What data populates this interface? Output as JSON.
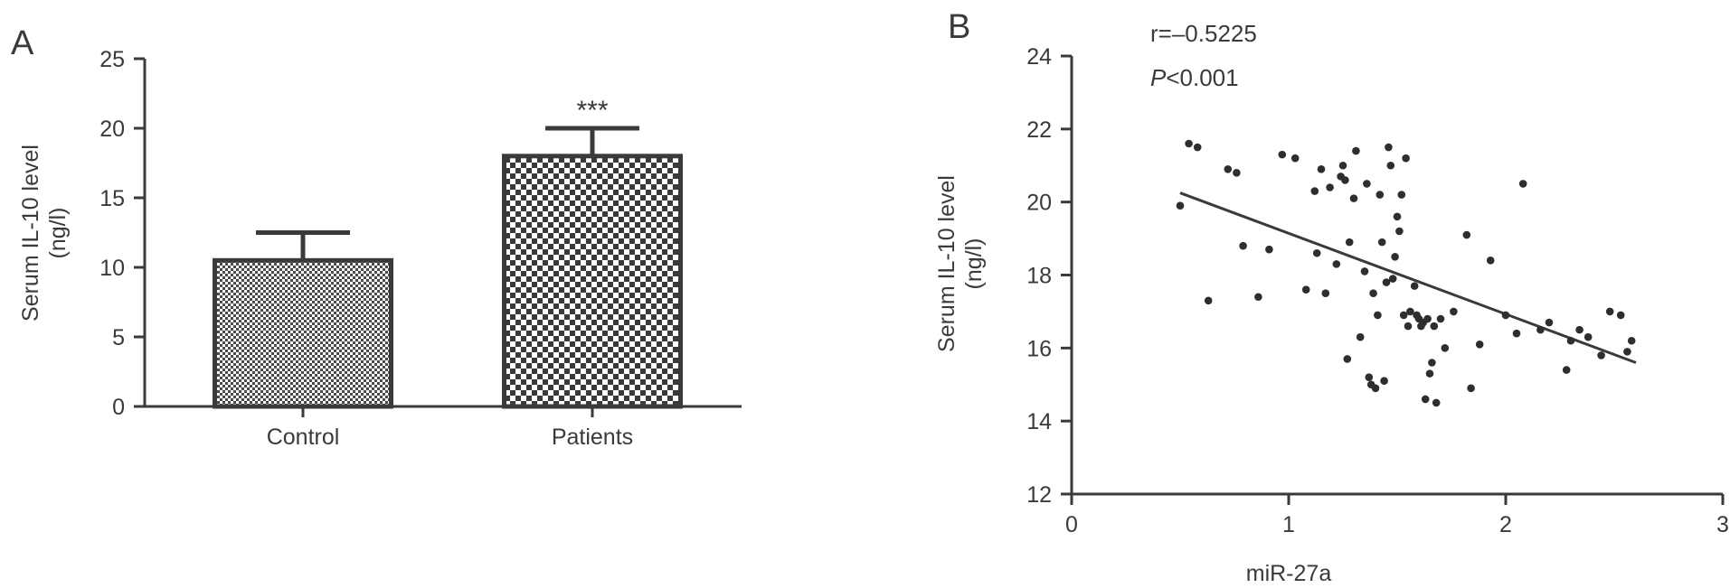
{
  "chart_data": [
    {
      "panel_label": "A",
      "type": "bar",
      "categories": [
        "Control",
        "Patients"
      ],
      "values": [
        10.5,
        18.0
      ],
      "error": [
        2.0,
        2.0
      ],
      "annotations": [
        "",
        "***"
      ],
      "ylabel": [
        "Serum IL-10 level",
        "(ng/l)"
      ],
      "ylim": [
        0,
        25
      ],
      "yticks": [
        0,
        5,
        10,
        15,
        20,
        25
      ],
      "fills": [
        "fine-checker",
        "coarse-checker"
      ],
      "grid": false
    },
    {
      "panel_label": "B",
      "type": "scatter",
      "xlabel": "miR-27a",
      "ylabel": [
        "Serum IL-10 level",
        "(ng/l)"
      ],
      "xlim": [
        0,
        3
      ],
      "ylim": [
        12,
        24
      ],
      "xticks": [
        0,
        1,
        2,
        3
      ],
      "yticks": [
        12,
        14,
        16,
        18,
        20,
        22,
        24
      ],
      "stats": {
        "r": "r=–0.5225",
        "p_italic": "P",
        "p_rest": "<0.001"
      },
      "fit_line": {
        "x": [
          0.5,
          2.6
        ],
        "y": [
          20.25,
          15.6
        ]
      },
      "points": [
        [
          0.5,
          19.9
        ],
        [
          0.54,
          21.6
        ],
        [
          0.58,
          21.5
        ],
        [
          0.63,
          17.3
        ],
        [
          0.72,
          20.9
        ],
        [
          0.76,
          20.8
        ],
        [
          0.79,
          18.8
        ],
        [
          0.86,
          17.4
        ],
        [
          0.91,
          18.7
        ],
        [
          0.97,
          21.3
        ],
        [
          1.03,
          21.2
        ],
        [
          1.08,
          17.6
        ],
        [
          1.12,
          20.3
        ],
        [
          1.13,
          18.6
        ],
        [
          1.15,
          20.9
        ],
        [
          1.17,
          17.5
        ],
        [
          1.19,
          20.4
        ],
        [
          1.22,
          18.3
        ],
        [
          1.24,
          20.7
        ],
        [
          1.25,
          21.0
        ],
        [
          1.26,
          20.6
        ],
        [
          1.27,
          15.7
        ],
        [
          1.28,
          18.9
        ],
        [
          1.3,
          20.1
        ],
        [
          1.31,
          21.4
        ],
        [
          1.33,
          16.3
        ],
        [
          1.35,
          18.1
        ],
        [
          1.36,
          20.5
        ],
        [
          1.37,
          15.2
        ],
        [
          1.38,
          15.0
        ],
        [
          1.39,
          17.5
        ],
        [
          1.4,
          14.9
        ],
        [
          1.41,
          16.9
        ],
        [
          1.42,
          20.2
        ],
        [
          1.43,
          18.9
        ],
        [
          1.44,
          15.1
        ],
        [
          1.45,
          17.8
        ],
        [
          1.46,
          21.5
        ],
        [
          1.47,
          21.0
        ],
        [
          1.48,
          17.9
        ],
        [
          1.49,
          18.5
        ],
        [
          1.5,
          19.6
        ],
        [
          1.51,
          19.2
        ],
        [
          1.52,
          20.2
        ],
        [
          1.53,
          16.9
        ],
        [
          1.54,
          21.2
        ],
        [
          1.55,
          16.6
        ],
        [
          1.56,
          17.0
        ],
        [
          1.58,
          17.7
        ],
        [
          1.59,
          16.9
        ],
        [
          1.6,
          16.8
        ],
        [
          1.61,
          16.6
        ],
        [
          1.62,
          16.7
        ],
        [
          1.63,
          14.6
        ],
        [
          1.64,
          16.8
        ],
        [
          1.65,
          15.3
        ],
        [
          1.66,
          15.6
        ],
        [
          1.67,
          16.6
        ],
        [
          1.68,
          14.5
        ],
        [
          1.7,
          16.8
        ],
        [
          1.72,
          16.0
        ],
        [
          1.76,
          17.0
        ],
        [
          1.82,
          19.1
        ],
        [
          1.84,
          14.9
        ],
        [
          1.88,
          16.1
        ],
        [
          1.93,
          18.4
        ],
        [
          2.0,
          16.9
        ],
        [
          2.05,
          16.4
        ],
        [
          2.08,
          20.5
        ],
        [
          2.16,
          16.5
        ],
        [
          2.2,
          16.7
        ],
        [
          2.28,
          15.4
        ],
        [
          2.3,
          16.2
        ],
        [
          2.34,
          16.5
        ],
        [
          2.38,
          16.3
        ],
        [
          2.44,
          15.8
        ],
        [
          2.48,
          17.0
        ],
        [
          2.53,
          16.9
        ],
        [
          2.56,
          15.9
        ],
        [
          2.58,
          16.2
        ]
      ],
      "grid": false
    }
  ]
}
